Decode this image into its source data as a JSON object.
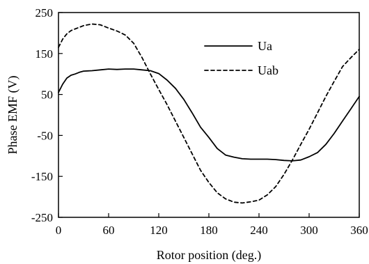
{
  "chart_data": {
    "type": "line",
    "title": "",
    "xlabel": "Rotor position (deg.)",
    "ylabel": "Phase EMF (V)",
    "xlim": [
      0,
      360
    ],
    "ylim": [
      -250,
      250
    ],
    "xticks": [
      0,
      60,
      120,
      180,
      240,
      300,
      360
    ],
    "yticks": [
      -250,
      -150,
      -50,
      50,
      150,
      250
    ],
    "grid": false,
    "legend_position": "top-right",
    "series": [
      {
        "name": "Ua",
        "style": "solid",
        "color": "#000000",
        "x": [
          0,
          5,
          10,
          15,
          20,
          25,
          30,
          40,
          50,
          60,
          70,
          80,
          90,
          100,
          110,
          120,
          130,
          140,
          150,
          160,
          170,
          180,
          190,
          200,
          210,
          220,
          230,
          240,
          250,
          260,
          270,
          280,
          290,
          300,
          310,
          320,
          330,
          340,
          350,
          360
        ],
        "y": [
          55,
          75,
          90,
          97,
          100,
          104,
          107,
          108,
          110,
          112,
          111,
          112,
          112,
          110,
          108,
          101,
          85,
          65,
          38,
          5,
          -30,
          -55,
          -82,
          -98,
          -103,
          -107,
          -108,
          -108,
          -108,
          -109,
          -111,
          -112,
          -110,
          -102,
          -92,
          -72,
          -45,
          -15,
          15,
          45
        ]
      },
      {
        "name": "Uab",
        "style": "dashed",
        "color": "#000000",
        "x": [
          0,
          5,
          10,
          15,
          20,
          25,
          30,
          40,
          50,
          60,
          70,
          80,
          90,
          100,
          110,
          120,
          130,
          140,
          150,
          160,
          170,
          180,
          190,
          200,
          210,
          220,
          230,
          240,
          250,
          260,
          270,
          280,
          290,
          300,
          310,
          320,
          330,
          340,
          350,
          360
        ],
        "y": [
          165,
          185,
          198,
          206,
          210,
          214,
          218,
          222,
          220,
          212,
          205,
          195,
          175,
          140,
          100,
          62,
          25,
          -15,
          -55,
          -95,
          -135,
          -165,
          -190,
          -205,
          -213,
          -215,
          -212,
          -208,
          -195,
          -175,
          -145,
          -110,
          -72,
          -35,
          5,
          45,
          82,
          118,
          140,
          160
        ]
      }
    ]
  }
}
